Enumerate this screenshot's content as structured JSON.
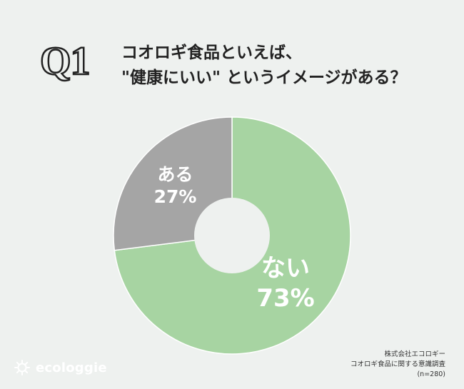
{
  "header": {
    "badge": "Q1",
    "question_line1": "コオロギ食品といえば、",
    "question_line2": "\"健康にいい\" というイメージがある？"
  },
  "chart_data": {
    "type": "pie",
    "title": "コオロギ食品といえば、\"健康にいい\" というイメージがある？",
    "slices": [
      {
        "label": "ない",
        "value": 73,
        "value_label": "73%",
        "color": "#a7d4a2"
      },
      {
        "label": "ある",
        "value": 27,
        "value_label": "27%",
        "color": "#a5a5a5"
      }
    ],
    "hole": true
  },
  "source": {
    "company": "株式会社エコロギー",
    "survey": "コオロギ食品に関する意識調査",
    "sample": "(n=280)"
  },
  "logo": {
    "text": "ecologgie"
  },
  "colors": {
    "background": "#eef1ef",
    "nai": "#a7d4a2",
    "aru": "#a5a5a5",
    "hole": "#eef1ef"
  }
}
